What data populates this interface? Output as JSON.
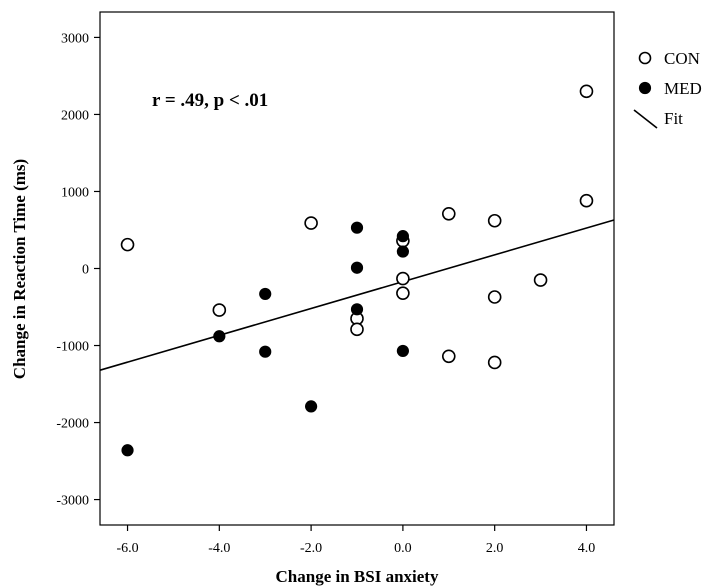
{
  "chart_data": {
    "type": "scatter",
    "xlabel": "Change in BSI anxiety",
    "ylabel": "Change in Reaction Time (ms)",
    "annotation": "r = .49, p < .01",
    "xlim": [
      -6.6,
      4.6
    ],
    "ylim": [
      -3330,
      3330
    ],
    "x_ticks": [
      -6,
      -4,
      -2,
      0,
      2,
      4
    ],
    "x_tick_labels": [
      "-6.0",
      "-4.0",
      "-2.0",
      "0.0",
      "2.0",
      "4.0"
    ],
    "y_ticks": [
      3000,
      2000,
      1000,
      0,
      -1000,
      -2000,
      -3000
    ],
    "y_tick_labels": [
      "3000",
      "2000",
      "1000",
      "0",
      "-1000",
      "-2000",
      "-3000"
    ],
    "legend_position": "right",
    "series": [
      {
        "name": "CON",
        "marker": "open-circle",
        "points": [
          [
            -6,
            310
          ],
          [
            -4,
            -540
          ],
          [
            -2,
            590
          ],
          [
            -1,
            -650
          ],
          [
            -1,
            -790
          ],
          [
            0,
            360
          ],
          [
            0,
            -130
          ],
          [
            0,
            -320
          ],
          [
            1,
            710
          ],
          [
            1,
            -1140
          ],
          [
            2,
            620
          ],
          [
            2,
            -370
          ],
          [
            2,
            -1220
          ],
          [
            3,
            -150
          ],
          [
            4,
            2300
          ],
          [
            4,
            880
          ]
        ]
      },
      {
        "name": "MED",
        "marker": "filled-circle",
        "points": [
          [
            -6,
            -2360
          ],
          [
            -4,
            -880
          ],
          [
            -3,
            -330
          ],
          [
            -3,
            -1080
          ],
          [
            -2,
            -1790
          ],
          [
            -1,
            530
          ],
          [
            -1,
            10
          ],
          [
            -1,
            -530
          ],
          [
            0,
            420
          ],
          [
            0,
            220
          ],
          [
            0,
            -1070
          ]
        ]
      }
    ],
    "fit": {
      "name": "Fit",
      "x": [
        -6.6,
        4.6
      ],
      "y": [
        -1320,
        630
      ]
    }
  }
}
